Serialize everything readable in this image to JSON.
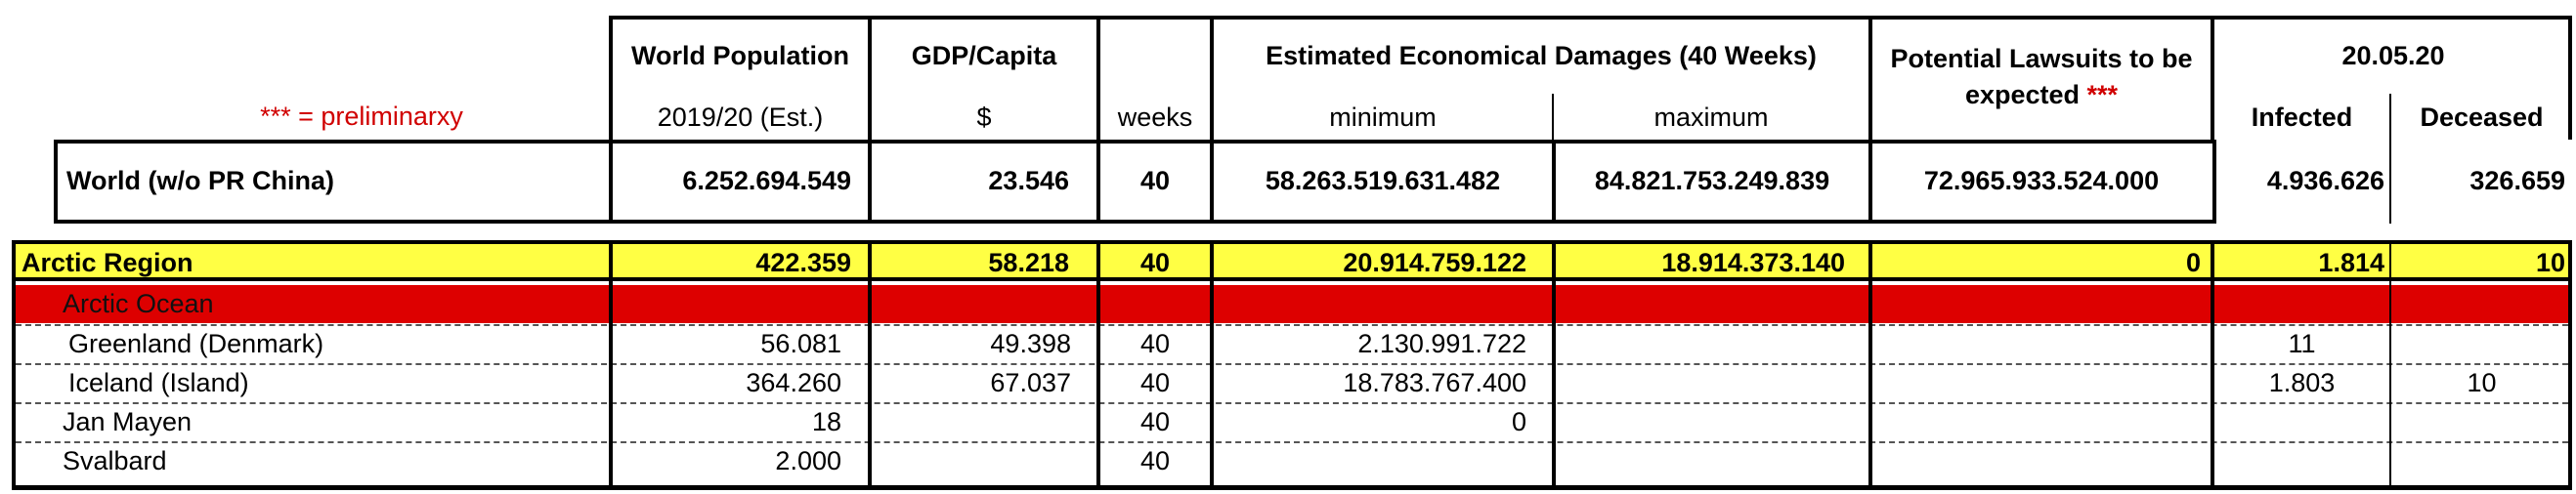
{
  "legend_note": "*** = preliminarxy",
  "header": {
    "world_population": "World Population",
    "world_population_sub": "2019/20 (Est.)",
    "gdp_capita": "GDP/Capita",
    "gdp_capita_sub": "$",
    "weeks_sub": "weeks",
    "damages": "Estimated Economical Damages (40 Weeks)",
    "damages_min": "minimum",
    "damages_max": "maximum",
    "lawsuits_line1": "Potential Lawsuits to be",
    "lawsuits_line2": "expected",
    "lawsuits_mark": "***",
    "date": "20.05.20",
    "infected": "Infected",
    "deceased": "Deceased"
  },
  "world_row": {
    "name": "World (w/o PR China)",
    "population": "6.252.694.549",
    "gdp": "23.546",
    "weeks": "40",
    "min": "58.263.519.631.482",
    "max": "84.821.753.249.839",
    "lawsuits": "72.965.933.524.000",
    "infected": "4.936.626",
    "deceased": "326.659"
  },
  "region_row": {
    "name": "Arctic Region",
    "population": "422.359",
    "gdp": "58.218",
    "weeks": "40",
    "min": "20.914.759.122",
    "max": "18.914.373.140",
    "lawsuits": "0",
    "infected": "1.814",
    "deceased": "10"
  },
  "subregion_row": {
    "name": "Arctic Ocean"
  },
  "rows": [
    {
      "name": "Greenland (Denmark)",
      "population": "56.081",
      "gdp": "49.398",
      "weeks": "40",
      "min": "2.130.991.722",
      "infected": "11",
      "deceased": ""
    },
    {
      "name": "Iceland (Island)",
      "population": "364.260",
      "gdp": "67.037",
      "weeks": "40",
      "min": "18.783.767.400",
      "infected": "1.803",
      "deceased": "10"
    },
    {
      "name": "Jan Mayen",
      "population": "18",
      "gdp": "",
      "weeks": "40",
      "min": "0",
      "infected": "",
      "deceased": ""
    },
    {
      "name": "Svalbard",
      "population": "2.000",
      "gdp": "",
      "weeks": "40",
      "min": "",
      "infected": "",
      "deceased": ""
    }
  ],
  "colors": {
    "region_fill": "#ffff44",
    "subregion_fill": "#dd0000",
    "note_red": "#d00000"
  }
}
